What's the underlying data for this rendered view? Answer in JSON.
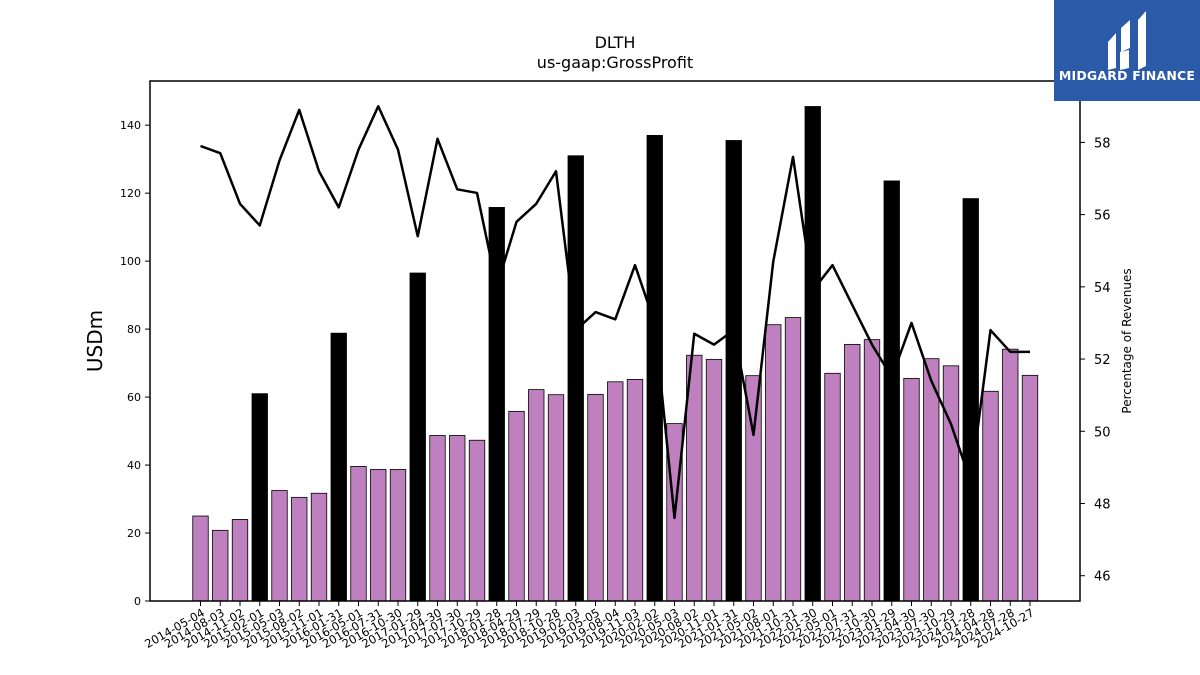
{
  "chart_data": {
    "type": "bar",
    "title": "DLTH",
    "subtitle": "us-gaap:GrossProfit",
    "ylabel": "USDm",
    "y2label": "Percentage of Revenues",
    "ylim": [
      0,
      153
    ],
    "y2lim": [
      45.3,
      59.7
    ],
    "yticks": [
      0,
      20,
      40,
      60,
      80,
      100,
      120,
      140
    ],
    "y2ticks": [
      46,
      48,
      50,
      52,
      54,
      56,
      58
    ],
    "categories": [
      "2014-05-04",
      "2014-08-03",
      "2014-11-02",
      "2015-02-01",
      "2015-05-03",
      "2015-08-02",
      "2015-11-01",
      "2016-01-31",
      "2016-05-01",
      "2016-07-31",
      "2016-10-30",
      "2017-01-29",
      "2017-04-30",
      "2017-07-30",
      "2017-10-29",
      "2018-01-28",
      "2018-04-29",
      "2018-07-29",
      "2018-10-28",
      "2019-02-03",
      "2019-05-05",
      "2019-08-04",
      "2019-11-03",
      "2020-02-02",
      "2020-05-03",
      "2020-08-02",
      "2020-11-01",
      "2021-01-31",
      "2021-05-02",
      "2021-08-01",
      "2021-10-31",
      "2022-01-30",
      "2022-05-01",
      "2022-07-31",
      "2022-10-30",
      "2023-01-29",
      "2023-04-30",
      "2023-07-30",
      "2023-10-29",
      "2024-01-28",
      "2024-04-28",
      "2024-07-28",
      "2024-10-27"
    ],
    "series": [
      {
        "kind": "bar",
        "values": [
          25,
          20.8,
          24,
          61,
          32.5,
          30.5,
          31.7,
          78.8,
          39.6,
          38.7,
          38.7,
          96.5,
          48.7,
          48.7,
          47.3,
          115.8,
          55.8,
          62.2,
          60.7,
          131,
          60.8,
          64.5,
          65.2,
          137,
          52.2,
          72.3,
          71.1,
          135.5,
          66.3,
          81.3,
          83.4,
          145.5,
          67,
          75.5,
          76.9,
          123.6,
          65.5,
          71.3,
          69.2,
          118.4,
          61.7,
          74.1,
          66.4
        ],
        "colors": [
          "#bf80bf",
          "#000000"
        ],
        "q4_every": 4,
        "q4_offset": 3
      },
      {
        "kind": "line",
        "axis": "right",
        "color": "#000000",
        "values": [
          57.9,
          57.7,
          56.3,
          55.7,
          57.5,
          58.9,
          57.2,
          56.2,
          57.8,
          59.0,
          57.8,
          55.4,
          58.1,
          56.7,
          56.6,
          54.0,
          55.8,
          56.3,
          57.2,
          52.8,
          53.3,
          53.1,
          54.6,
          53.0,
          47.6,
          52.7,
          52.4,
          52.8,
          49.9,
          54.7,
          57.6,
          53.9,
          54.6,
          53.5,
          52.4,
          51.5,
          53.0,
          51.4,
          50.2,
          48.6,
          52.8,
          52.2,
          52.2
        ]
      }
    ]
  },
  "logo": {
    "text": "MIDGARD FINANCE",
    "bg": "#2a5aa8"
  }
}
